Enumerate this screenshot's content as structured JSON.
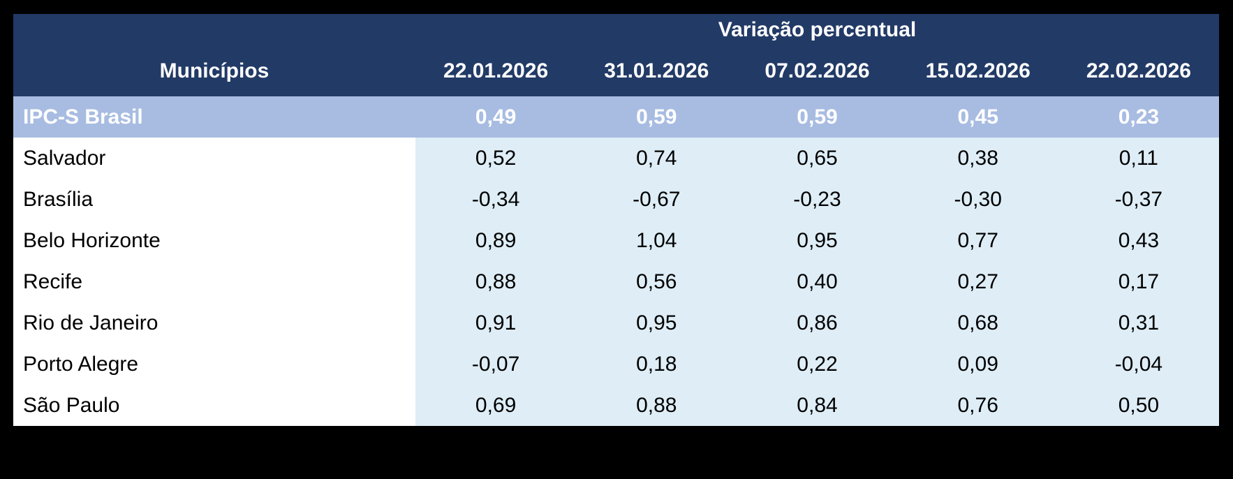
{
  "table": {
    "group_header": "Variação percentual",
    "row_header_label": "Municípios",
    "columns": [
      "22.01.2026",
      "31.01.2026",
      "07.02.2026",
      "15.02.2026",
      "22.02.2026"
    ],
    "summary_row": {
      "name": "IPC-S Brasil",
      "values": [
        "0,49",
        "0,59",
        "0,59",
        "0,45",
        "0,23"
      ]
    },
    "rows": [
      {
        "name": "Salvador",
        "values": [
          "0,52",
          "0,74",
          "0,65",
          "0,38",
          "0,11"
        ]
      },
      {
        "name": "Brasília",
        "values": [
          "-0,34",
          "-0,67",
          "-0,23",
          "-0,30",
          "-0,37"
        ]
      },
      {
        "name": "Belo Horizonte",
        "values": [
          "0,89",
          "1,04",
          "0,95",
          "0,77",
          "0,43"
        ]
      },
      {
        "name": "Recife",
        "values": [
          "0,88",
          "0,56",
          "0,40",
          "0,27",
          "0,17"
        ]
      },
      {
        "name": "Rio de Janeiro",
        "values": [
          "0,91",
          "0,95",
          "0,86",
          "0,68",
          "0,31"
        ]
      },
      {
        "name": "Porto Alegre",
        "values": [
          "-0,07",
          "0,18",
          "0,22",
          "0,09",
          "-0,04"
        ]
      },
      {
        "name": "São Paulo",
        "values": [
          "0,69",
          "0,88",
          "0,84",
          "0,76",
          "0,50"
        ]
      }
    ],
    "colors": {
      "page_bg": "#000000",
      "header_bg": "#223A66",
      "header_text": "#FFFFFF",
      "highlight_bg": "#A8BCE2",
      "highlight_text": "#FFFFFF",
      "body_value_bg": "#DEEDF6",
      "body_name_bg": "#FFFFFF",
      "body_text": "#000000"
    }
  },
  "chart_data": {
    "type": "table",
    "title": "Variação percentual",
    "row_label_header": "Municípios",
    "columns": [
      "22.01.2026",
      "31.01.2026",
      "07.02.2026",
      "15.02.2026",
      "22.02.2026"
    ],
    "rows": [
      {
        "name": "IPC-S Brasil",
        "values": [
          0.49,
          0.59,
          0.59,
          0.45,
          0.23
        ],
        "highlight": true
      },
      {
        "name": "Salvador",
        "values": [
          0.52,
          0.74,
          0.65,
          0.38,
          0.11
        ],
        "highlight": false
      },
      {
        "name": "Brasília",
        "values": [
          -0.34,
          -0.67,
          -0.23,
          -0.3,
          -0.37
        ],
        "highlight": false
      },
      {
        "name": "Belo Horizonte",
        "values": [
          0.89,
          1.04,
          0.95,
          0.77,
          0.43
        ],
        "highlight": false
      },
      {
        "name": "Recife",
        "values": [
          0.88,
          0.56,
          0.4,
          0.27,
          0.17
        ],
        "highlight": false
      },
      {
        "name": "Rio de Janeiro",
        "values": [
          0.91,
          0.95,
          0.86,
          0.68,
          0.31
        ],
        "highlight": false
      },
      {
        "name": "Porto Alegre",
        "values": [
          -0.07,
          0.18,
          0.22,
          0.09,
          -0.04
        ],
        "highlight": false
      },
      {
        "name": "São Paulo",
        "values": [
          0.69,
          0.88,
          0.84,
          0.76,
          0.5
        ],
        "highlight": false
      }
    ],
    "value_format": "pt-BR decimal comma, percent variation",
    "layout": {
      "grid": false,
      "highlight_row": "IPC-S Brasil"
    }
  }
}
